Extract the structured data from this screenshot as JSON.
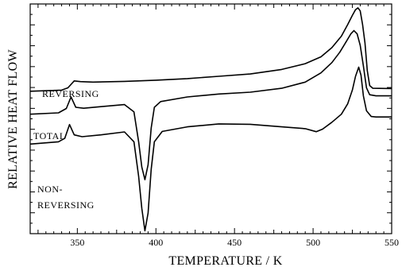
{
  "chart_data": {
    "type": "line",
    "xlabel": "TEMPERATURE / K",
    "ylabel": "RELATIVE HEAT FLOW",
    "xlim": [
      320,
      550
    ],
    "ylim": [
      0,
      100
    ],
    "x_ticks": [
      "350",
      "400",
      "450",
      "500",
      "550"
    ],
    "y_tick_labels_shown": false,
    "grid": false,
    "legend": "none",
    "series": [
      {
        "name": "REVERSING",
        "annotation": "REVERSING",
        "color": "#000000",
        "points": [
          [
            320,
            62
          ],
          [
            340,
            62.5
          ],
          [
            344,
            63.5
          ],
          [
            348,
            66.5
          ],
          [
            352,
            66.2
          ],
          [
            360,
            66
          ],
          [
            380,
            66.3
          ],
          [
            400,
            66.8
          ],
          [
            420,
            67.5
          ],
          [
            440,
            68.5
          ],
          [
            460,
            69.5
          ],
          [
            480,
            71.5
          ],
          [
            495,
            74
          ],
          [
            505,
            77
          ],
          [
            512,
            81
          ],
          [
            518,
            86
          ],
          [
            522,
            91
          ],
          [
            525,
            95
          ],
          [
            527,
            97.5
          ],
          [
            528.5,
            98.3
          ],
          [
            530,
            97
          ],
          [
            531.5,
            91
          ],
          [
            533,
            83
          ],
          [
            534.5,
            71
          ],
          [
            536,
            64.5
          ],
          [
            538,
            63.3
          ],
          [
            550,
            63.2
          ]
        ]
      },
      {
        "name": "TOTAL",
        "annotation": "TOTAL",
        "color": "#000000",
        "points": [
          [
            320,
            52
          ],
          [
            338,
            52.6
          ],
          [
            343,
            54.5
          ],
          [
            346,
            59.5
          ],
          [
            349,
            55
          ],
          [
            354,
            54.6
          ],
          [
            365,
            55.3
          ],
          [
            380,
            56.2
          ],
          [
            386,
            53
          ],
          [
            389,
            40
          ],
          [
            391,
            29
          ],
          [
            393,
            23.5
          ],
          [
            395,
            30
          ],
          [
            397,
            46
          ],
          [
            399,
            55
          ],
          [
            403,
            57.5
          ],
          [
            420,
            59.5
          ],
          [
            440,
            60.8
          ],
          [
            460,
            61.6
          ],
          [
            480,
            63.3
          ],
          [
            495,
            66
          ],
          [
            505,
            70
          ],
          [
            512,
            74.5
          ],
          [
            517,
            79
          ],
          [
            521,
            83.5
          ],
          [
            524,
            87
          ],
          [
            526,
            88.4
          ],
          [
            528,
            87
          ],
          [
            530,
            82
          ],
          [
            532,
            73
          ],
          [
            534,
            63.5
          ],
          [
            536,
            60.5
          ],
          [
            540,
            60
          ],
          [
            550,
            60
          ]
        ]
      },
      {
        "name": "NON-REVERSING",
        "annotation": "NON-\nREVERSING",
        "color": "#000000",
        "points": [
          [
            320,
            39
          ],
          [
            338,
            40
          ],
          [
            342,
            41.5
          ],
          [
            345,
            47.5
          ],
          [
            348,
            43
          ],
          [
            353,
            42.2
          ],
          [
            365,
            43
          ],
          [
            380,
            44.3
          ],
          [
            386,
            40
          ],
          [
            389,
            25
          ],
          [
            391,
            11
          ],
          [
            393,
            1.2
          ],
          [
            395,
            9
          ],
          [
            397,
            28
          ],
          [
            399,
            40
          ],
          [
            404,
            44.5
          ],
          [
            420,
            46.5
          ],
          [
            440,
            47.8
          ],
          [
            460,
            47.6
          ],
          [
            480,
            46.5
          ],
          [
            495,
            45.7
          ],
          [
            502,
            44.4
          ],
          [
            506,
            45.5
          ],
          [
            512,
            48.5
          ],
          [
            518,
            52
          ],
          [
            522,
            56.5
          ],
          [
            525,
            62.5
          ],
          [
            527,
            68.5
          ],
          [
            529,
            72.5
          ],
          [
            530.5,
            69
          ],
          [
            532,
            60
          ],
          [
            534,
            53.5
          ],
          [
            537,
            51
          ],
          [
            540,
            50.8
          ],
          [
            550,
            50.8
          ]
        ]
      }
    ]
  }
}
